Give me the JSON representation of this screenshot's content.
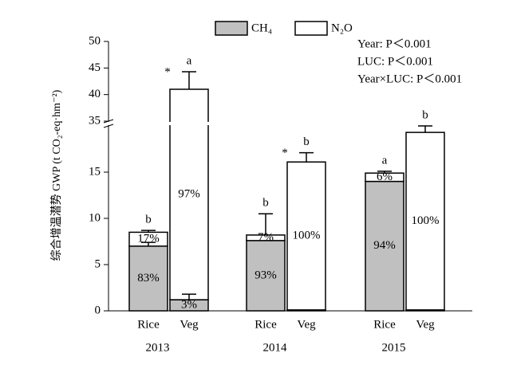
{
  "chart_data": {
    "type": "stacked_bar",
    "y_label": "综合增温潜势 GWP (t CO₂-eq·hm⁻²)",
    "groups": [
      "2013",
      "2014",
      "2015"
    ],
    "categories": [
      "Rice",
      "Veg",
      "Rice",
      "Veg",
      "Rice",
      "Veg"
    ],
    "series": [
      {
        "name": "CH₄",
        "color": "#c0c0c0",
        "values": [
          7.0,
          1.2,
          7.6,
          0.1,
          14.0,
          0.1
        ],
        "errors": [
          0.4,
          0.6,
          null,
          null,
          null,
          null
        ],
        "share_labels": [
          "83%",
          "3%",
          "93%",
          null,
          "94%",
          null
        ]
      },
      {
        "name": "N₂O",
        "color": "#ffffff",
        "values": [
          1.5,
          39.8,
          0.6,
          16.0,
          0.9,
          19.2
        ],
        "errors": [
          0.2,
          3.3,
          2.3,
          1.0,
          0.2,
          0.8
        ],
        "share_labels": [
          "17%",
          "97%",
          "7%",
          "100%",
          "6%",
          "100%"
        ]
      }
    ],
    "letters": [
      "b",
      "a",
      "b",
      "b",
      "a",
      "b"
    ],
    "stars": [
      null,
      "*",
      null,
      "*",
      null,
      null
    ],
    "stats": [
      "Year: P＜0.001",
      "LUC: P＜0.001",
      "Year×LUC: P＜0.001"
    ],
    "ylim": [
      0,
      50
    ],
    "axis_break": [
      20,
      35
    ],
    "yticks": [
      0,
      5,
      10,
      15,
      35,
      40,
      45,
      50
    ],
    "legend": "top"
  }
}
